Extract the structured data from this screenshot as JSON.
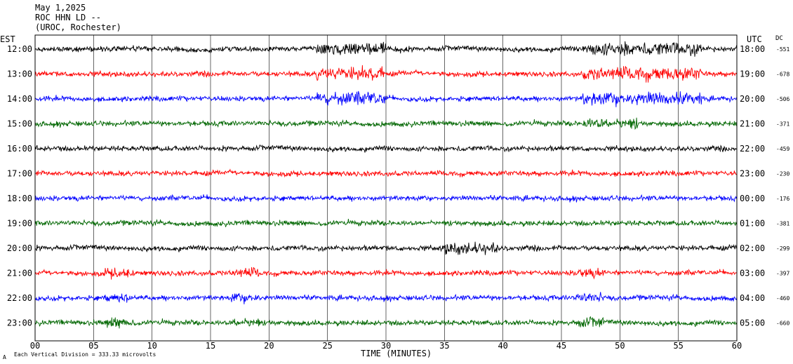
{
  "header": {
    "date": "May 1,2025",
    "station": "ROC HHN LD --",
    "location": "(UROC, Rochester)"
  },
  "left_axis_title": "EST",
  "right_axis_title": "UTC",
  "dc_title": "DC",
  "footer": {
    "scale_note": "Each Vertical Division =  333.33 microvolts",
    "corner_mark": "A"
  },
  "colors": {
    "black": "#000000",
    "red": "#ff0000",
    "blue": "#0000ff",
    "green": "#006600"
  },
  "chart_data": {
    "type": "line",
    "title": "May 1,2025 ROC HHN LD -- (UROC, Rochester)",
    "xlabel": "TIME (MINUTES)",
    "ylabel": "",
    "xlim": [
      0,
      60
    ],
    "x_ticks": [
      0,
      5,
      10,
      15,
      20,
      25,
      30,
      35,
      40,
      45,
      50,
      55,
      60
    ],
    "x_tick_labels": [
      "00",
      "05",
      "10",
      "15",
      "20",
      "25",
      "30",
      "35",
      "40",
      "45",
      "50",
      "55",
      "60"
    ],
    "grid": "vertical every 5 minutes",
    "rows": [
      {
        "est": "12:00",
        "utc": "18:00",
        "dc": "-551",
        "color": "black"
      },
      {
        "est": "13:00",
        "utc": "19:00",
        "dc": "-678",
        "color": "red"
      },
      {
        "est": "14:00",
        "utc": "20:00",
        "dc": "-506",
        "color": "blue"
      },
      {
        "est": "15:00",
        "utc": "21:00",
        "dc": "-371",
        "color": "green"
      },
      {
        "est": "16:00",
        "utc": "22:00",
        "dc": "-459",
        "color": "black"
      },
      {
        "est": "17:00",
        "utc": "23:00",
        "dc": "-230",
        "color": "red"
      },
      {
        "est": "18:00",
        "utc": "00:00",
        "dc": "-176",
        "color": "blue"
      },
      {
        "est": "19:00",
        "utc": "01:00",
        "dc": "-381",
        "color": "green"
      },
      {
        "est": "20:00",
        "utc": "02:00",
        "dc": "-299",
        "color": "black"
      },
      {
        "est": "21:00",
        "utc": "03:00",
        "dc": "-397",
        "color": "red"
      },
      {
        "est": "22:00",
        "utc": "04:00",
        "dc": "-460",
        "color": "blue"
      },
      {
        "est": "23:00",
        "utc": "05:00",
        "dc": "-660",
        "color": "green"
      }
    ]
  }
}
